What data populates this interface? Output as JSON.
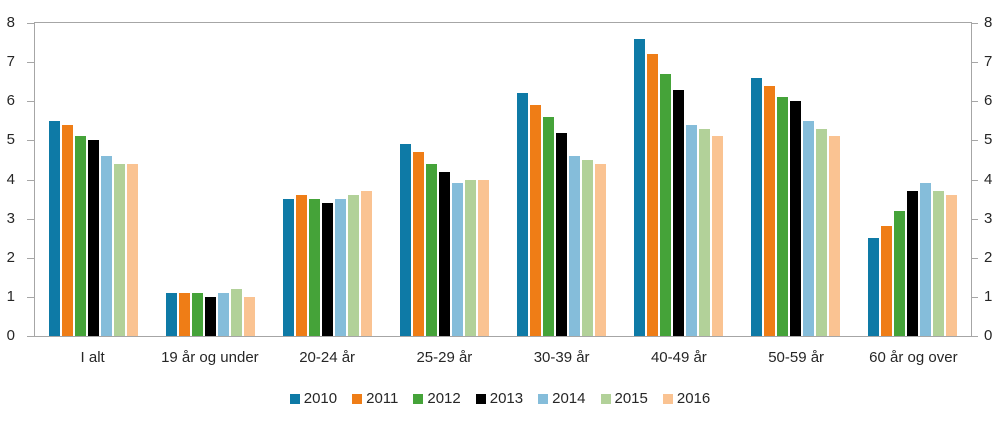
{
  "chart_data": {
    "type": "bar",
    "title": "",
    "xlabel": "",
    "ylabel": "",
    "ylim": [
      0,
      8
    ],
    "yticks": [
      0,
      1,
      2,
      3,
      4,
      5,
      6,
      7,
      8
    ],
    "grid": false,
    "legend_position": "bottom",
    "dual_y_axis": true,
    "categories": [
      "I alt",
      "19 år og under",
      "20-24 år",
      "25-29 år",
      "30-39 år",
      "40-49 år",
      "50-59 år",
      "60 år og over"
    ],
    "series": [
      {
        "name": "2010",
        "color": "#0e7aa6",
        "values": [
          5.5,
          1.1,
          3.5,
          4.9,
          6.2,
          7.6,
          6.6,
          2.5
        ]
      },
      {
        "name": "2011",
        "color": "#ef7d16",
        "values": [
          5.4,
          1.1,
          3.6,
          4.7,
          5.9,
          7.2,
          6.4,
          2.8
        ]
      },
      {
        "name": "2012",
        "color": "#45a339",
        "values": [
          5.1,
          1.1,
          3.5,
          4.4,
          5.6,
          6.7,
          6.1,
          3.2
        ]
      },
      {
        "name": "2013",
        "color": "#000000",
        "values": [
          5.0,
          1.0,
          3.4,
          4.2,
          5.2,
          6.3,
          6.0,
          3.7
        ]
      },
      {
        "name": "2014",
        "color": "#85bdda",
        "values": [
          4.6,
          1.1,
          3.5,
          3.9,
          4.6,
          5.4,
          5.5,
          3.9
        ]
      },
      {
        "name": "2015",
        "color": "#b2d199",
        "values": [
          4.4,
          1.2,
          3.6,
          4.0,
          4.5,
          5.3,
          5.3,
          3.7
        ]
      },
      {
        "name": "2016",
        "color": "#fac392",
        "values": [
          4.4,
          1.0,
          3.7,
          4.0,
          4.4,
          5.1,
          5.1,
          3.6
        ]
      }
    ],
    "colors": {
      "axis": "#a6a6a6",
      "text": "#262626",
      "background": "#ffffff"
    }
  }
}
